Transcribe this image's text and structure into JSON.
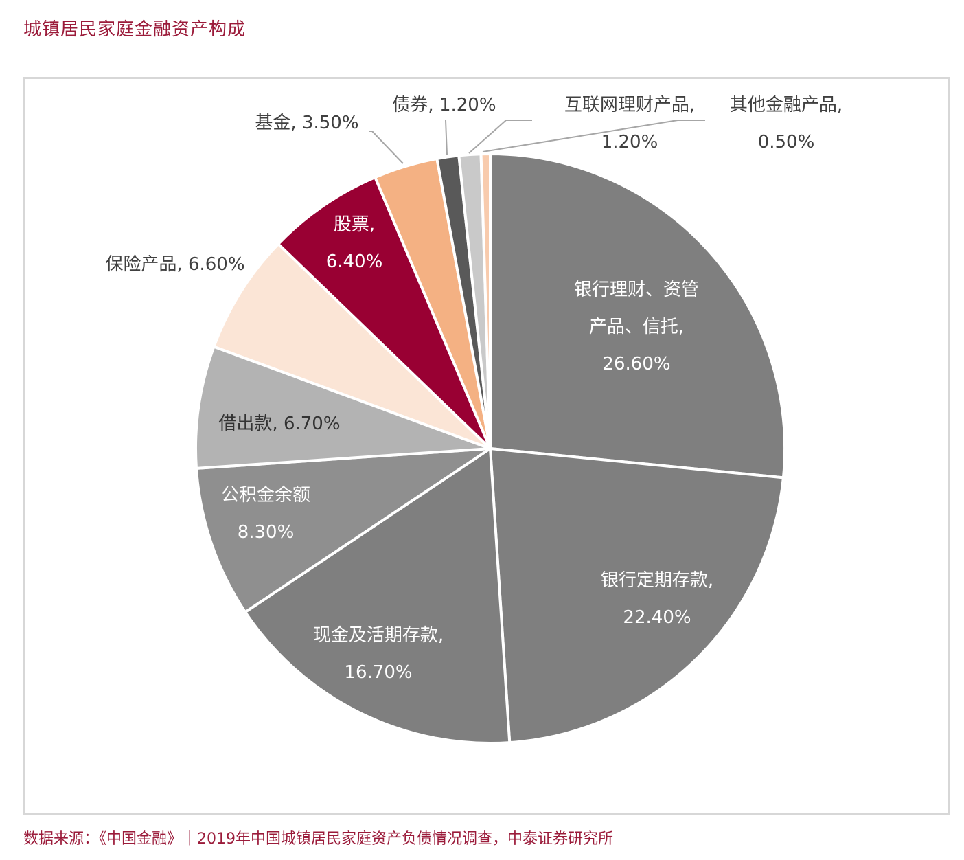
{
  "title": "城镇居民家庭金融资产构成",
  "source": "数据来源：《中国金融》｜2019年中国城镇居民家庭资产负债情况调查，中泰证券研究所",
  "chart_data": {
    "type": "pie",
    "title": "城镇居民家庭金融资产构成",
    "slices": [
      {
        "label": "银行理财、资管产品、信托",
        "value": 26.6,
        "display": "26.60%",
        "label_lines": [
          "银行理财、资管",
          "产品、信托,",
          "26.60%"
        ],
        "color": "#7f7f7f",
        "label_color": "#ffffff",
        "callout": false
      },
      {
        "label": "银行定期存款",
        "value": 22.4,
        "display": "22.40%",
        "label_lines": [
          "银行定期存款,",
          "22.40%"
        ],
        "color": "#7f7f7f",
        "label_color": "#ffffff",
        "callout": false
      },
      {
        "label": "现金及活期存款",
        "value": 16.7,
        "display": "16.70%",
        "label_lines": [
          "现金及活期存款,",
          "16.70%"
        ],
        "color": "#7f7f7f",
        "label_color": "#ffffff",
        "callout": false
      },
      {
        "label": "公积金余额",
        "value": 8.3,
        "display": "8.30%",
        "label_lines": [
          "公积金余额",
          "8.30%"
        ],
        "color": "#8f8f8f",
        "label_color": "#ffffff",
        "callout": false
      },
      {
        "label": "借出款",
        "value": 6.7,
        "display": "6.70%",
        "label_lines": [
          "借出款, 6.70%"
        ],
        "color": "#b3b3b3",
        "label_color": "#333333",
        "callout": false
      },
      {
        "label": "保险产品",
        "value": 6.6,
        "display": "6.60%",
        "label_lines": [
          "保险产品, 6.60%"
        ],
        "color": "#fbe5d6",
        "label_color": "#404040",
        "callout": false
      },
      {
        "label": "股票",
        "value": 6.4,
        "display": "6.40%",
        "label_lines": [
          "股票,",
          "6.40%"
        ],
        "color": "#990033",
        "label_color": "#ffffff",
        "callout": false
      },
      {
        "label": "基金",
        "value": 3.5,
        "display": "3.50%",
        "label_lines": [
          "基金, 3.50%"
        ],
        "color": "#f4b183",
        "label_color": "#404040",
        "callout": true
      },
      {
        "label": "债券",
        "value": 1.2,
        "display": "1.20%",
        "label_lines": [
          "债券, 1.20%"
        ],
        "color": "#595959",
        "label_color": "#404040",
        "callout": true
      },
      {
        "label": "互联网理财产品",
        "value": 1.2,
        "display": "1.20%",
        "label_lines": [
          "互联网理财产品,",
          "1.20%"
        ],
        "color": "#c9c9c9",
        "label_color": "#404040",
        "callout": true
      },
      {
        "label": "其他金融产品",
        "value": 0.5,
        "display": "0.50%",
        "label_lines": [
          "其他金融产品,",
          "0.50%"
        ],
        "color": "#f8cbad",
        "label_color": "#404040",
        "callout": true
      }
    ],
    "legend": "none",
    "start_angle_deg": 0,
    "direction": "clockwise"
  }
}
